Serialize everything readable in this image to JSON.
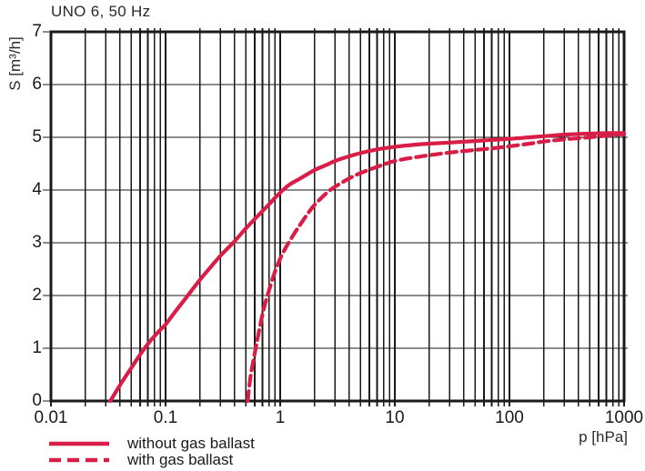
{
  "page": {
    "background": "#ffffff"
  },
  "chart_data": {
    "type": "line",
    "title": "UNO 6, 50 Hz",
    "xlabel": "p [hPa]",
    "ylabel": "S [m³/h]",
    "x_scale": "log",
    "x_range": [
      0.01,
      1000
    ],
    "y_range": [
      0,
      7
    ],
    "x_ticks": [
      {
        "value": 0.01,
        "label": "0.01"
      },
      {
        "value": 0.1,
        "label": "0.1"
      },
      {
        "value": 1,
        "label": "1"
      },
      {
        "value": 10,
        "label": "10"
      },
      {
        "value": 100,
        "label": "100"
      },
      {
        "value": 1000,
        "label": "1000"
      }
    ],
    "y_ticks": [
      {
        "value": 0,
        "label": "0"
      },
      {
        "value": 1,
        "label": "1"
      },
      {
        "value": 2,
        "label": "2"
      },
      {
        "value": 3,
        "label": "3"
      },
      {
        "value": 4,
        "label": "4"
      },
      {
        "value": 5,
        "label": "5"
      },
      {
        "value": 6,
        "label": "6"
      },
      {
        "value": 7,
        "label": "7"
      }
    ],
    "grid": {
      "x_major": true,
      "x_minor_multiples": [
        2,
        3,
        4,
        5,
        6,
        7,
        8,
        9
      ],
      "y_major": true,
      "color": "#1a1a1a"
    },
    "legend_position": "bottom-left",
    "series": [
      {
        "name": "without gas ballast",
        "style": "solid",
        "color": "#d81e46",
        "points": [
          [
            0.033,
            0
          ],
          [
            0.04,
            0.3
          ],
          [
            0.05,
            0.62
          ],
          [
            0.06,
            0.88
          ],
          [
            0.07,
            1.08
          ],
          [
            0.08,
            1.23
          ],
          [
            0.09,
            1.35
          ],
          [
            0.1,
            1.45
          ],
          [
            0.12,
            1.68
          ],
          [
            0.15,
            1.95
          ],
          [
            0.2,
            2.3
          ],
          [
            0.25,
            2.55
          ],
          [
            0.3,
            2.75
          ],
          [
            0.4,
            3.03
          ],
          [
            0.5,
            3.27
          ],
          [
            0.6,
            3.45
          ],
          [
            0.7,
            3.6
          ],
          [
            0.8,
            3.73
          ],
          [
            0.9,
            3.85
          ],
          [
            1,
            3.95
          ],
          [
            1.2,
            4.1
          ],
          [
            1.5,
            4.22
          ],
          [
            2,
            4.38
          ],
          [
            2.5,
            4.47
          ],
          [
            3,
            4.55
          ],
          [
            4,
            4.64
          ],
          [
            5,
            4.7
          ],
          [
            7,
            4.77
          ],
          [
            10,
            4.82
          ],
          [
            15,
            4.86
          ],
          [
            20,
            4.88
          ],
          [
            30,
            4.9
          ],
          [
            50,
            4.93
          ],
          [
            70,
            4.95
          ],
          [
            100,
            4.97
          ],
          [
            150,
            5.0
          ],
          [
            200,
            5.02
          ],
          [
            300,
            5.05
          ],
          [
            500,
            5.07
          ],
          [
            700,
            5.08
          ],
          [
            1000,
            5.08
          ]
        ]
      },
      {
        "name": "with gas ballast",
        "style": "dashed",
        "color": "#d81e46",
        "points": [
          [
            0.52,
            0
          ],
          [
            0.55,
            0.45
          ],
          [
            0.6,
            0.9
          ],
          [
            0.65,
            1.3
          ],
          [
            0.72,
            1.75
          ],
          [
            0.8,
            2.1
          ],
          [
            0.9,
            2.45
          ],
          [
            1,
            2.7
          ],
          [
            1.1,
            2.88
          ],
          [
            1.2,
            3.02
          ],
          [
            1.35,
            3.2
          ],
          [
            1.5,
            3.35
          ],
          [
            1.75,
            3.56
          ],
          [
            2,
            3.72
          ],
          [
            2.5,
            3.93
          ],
          [
            3,
            4.06
          ],
          [
            4,
            4.22
          ],
          [
            5,
            4.32
          ],
          [
            7,
            4.44
          ],
          [
            10,
            4.55
          ],
          [
            15,
            4.62
          ],
          [
            20,
            4.66
          ],
          [
            30,
            4.71
          ],
          [
            50,
            4.76
          ],
          [
            70,
            4.79
          ],
          [
            100,
            4.83
          ],
          [
            150,
            4.88
          ],
          [
            200,
            4.92
          ],
          [
            300,
            4.96
          ],
          [
            500,
            5.0
          ],
          [
            700,
            5.03
          ],
          [
            1000,
            5.06
          ]
        ]
      }
    ]
  }
}
